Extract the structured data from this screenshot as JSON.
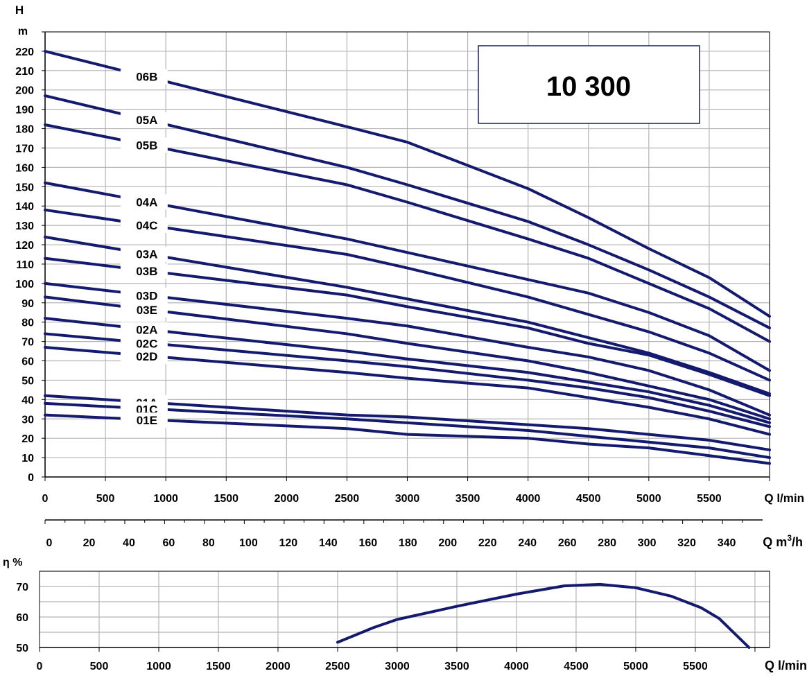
{
  "chart_data": [
    {
      "type": "line",
      "title": "10 300",
      "ylabel": "H",
      "yunit": "m",
      "xlabel": "Q l/min",
      "ylim": [
        0,
        230
      ],
      "xlim": [
        0,
        6000
      ],
      "yticks": [
        0,
        10,
        20,
        30,
        40,
        50,
        60,
        70,
        80,
        90,
        100,
        110,
        120,
        130,
        140,
        150,
        160,
        170,
        180,
        190,
        200,
        210,
        220
      ],
      "xticks": [
        0,
        500,
        1000,
        1500,
        2000,
        2500,
        3000,
        3500,
        4000,
        4500,
        5000,
        5500
      ],
      "grid": true,
      "x": [
        0,
        2500,
        3000,
        4000,
        4500,
        5000,
        5500,
        6000
      ],
      "series": [
        {
          "name": "06B",
          "values": [
            220,
            181,
            173,
            149,
            134,
            118,
            103,
            83
          ]
        },
        {
          "name": "05A",
          "values": [
            197,
            160,
            151,
            132,
            120,
            107,
            93,
            77
          ]
        },
        {
          "name": "05B",
          "values": [
            182,
            151,
            142,
            123,
            113,
            100,
            87,
            70
          ]
        },
        {
          "name": "04A",
          "values": [
            152,
            123,
            116,
            102,
            95,
            85,
            73,
            55
          ]
        },
        {
          "name": "04C",
          "values": [
            138,
            115,
            108,
            93,
            84,
            75,
            64,
            50
          ]
        },
        {
          "name": "03A",
          "values": [
            124,
            98,
            92,
            80,
            72,
            64,
            54,
            43
          ]
        },
        {
          "name": "03B",
          "values": [
            113,
            94,
            88,
            77,
            69,
            63,
            53,
            42
          ]
        },
        {
          "name": "03D",
          "values": [
            100,
            82,
            78,
            67,
            62,
            55,
            45,
            32
          ]
        },
        {
          "name": "03E",
          "values": [
            93,
            74,
            69,
            60,
            54,
            47,
            40,
            30
          ]
        },
        {
          "name": "02A",
          "values": [
            82,
            65,
            61,
            54,
            49,
            44,
            37,
            28
          ]
        },
        {
          "name": "02C",
          "values": [
            74,
            60,
            57,
            50,
            46,
            41,
            34,
            26
          ]
        },
        {
          "name": "02D",
          "values": [
            67,
            54,
            51,
            46,
            41,
            36,
            30,
            22
          ]
        },
        {
          "name": "01A",
          "values": [
            42,
            32,
            31,
            27,
            25,
            22,
            19,
            14
          ]
        },
        {
          "name": "01C",
          "values": [
            38,
            30,
            28,
            24,
            21,
            18,
            15,
            10
          ]
        },
        {
          "name": "01E",
          "values": [
            32,
            25,
            22,
            20,
            17,
            15,
            11,
            7
          ]
        }
      ]
    },
    {
      "type": "axis",
      "xlabel": "Q m3/h",
      "xticks": [
        0,
        20,
        40,
        60,
        80,
        100,
        120,
        140,
        160,
        180,
        200,
        220,
        240,
        260,
        280,
        300,
        320,
        340
      ],
      "xlim": [
        0,
        360
      ]
    },
    {
      "type": "line",
      "ylabel": "η %",
      "xlabel": "Q l/min",
      "ylim": [
        50,
        75
      ],
      "xlim": [
        0,
        6000
      ],
      "yticks": [
        50,
        60,
        70
      ],
      "xticks": [
        0,
        500,
        1000,
        1500,
        2000,
        2500,
        3000,
        3500,
        4000,
        4500,
        5000,
        5500
      ],
      "grid": true,
      "series": [
        {
          "name": "",
          "x": [
            2500,
            2800,
            3000,
            3500,
            4000,
            4400,
            4700,
            5000,
            5300,
            5550,
            5700,
            5950
          ],
          "values": [
            51.7,
            56.5,
            59.2,
            63.5,
            67.5,
            70.2,
            70.7,
            69.6,
            66.8,
            63.0,
            59.5,
            50.0
          ]
        }
      ]
    }
  ],
  "colors": {
    "curve": "#141a6e",
    "grid": "#b4b4b4",
    "axis": "#000000"
  }
}
